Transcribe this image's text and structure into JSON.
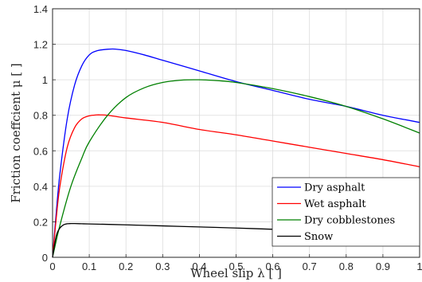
{
  "chart_data": {
    "type": "line",
    "xlabel": "Wheel slip λ [ ]",
    "ylabel": "Friction coeffcient μ [ ]",
    "xlim": [
      0,
      1
    ],
    "ylim": [
      0,
      1.4
    ],
    "xticks": [
      0,
      0.1,
      0.2,
      0.3,
      0.4,
      0.5,
      0.6,
      0.7,
      0.8,
      0.9,
      1
    ],
    "yticks": [
      0,
      0.2,
      0.4,
      0.6,
      0.8,
      1,
      1.2,
      1.4
    ],
    "grid": true,
    "legend_position": "bottom-right",
    "series": [
      {
        "name": "Dry asphalt",
        "color": "#0000ff",
        "x": [
          0,
          0.01,
          0.02,
          0.04,
          0.06,
          0.08,
          0.1,
          0.12,
          0.15,
          0.17,
          0.2,
          0.25,
          0.3,
          0.4,
          0.5,
          0.6,
          0.7,
          0.8,
          0.9,
          1.0
        ],
        "y": [
          0,
          0.25,
          0.47,
          0.78,
          0.97,
          1.08,
          1.14,
          1.163,
          1.172,
          1.173,
          1.165,
          1.14,
          1.11,
          1.05,
          0.99,
          0.94,
          0.89,
          0.85,
          0.8,
          0.76
        ]
      },
      {
        "name": "Wet asphalt",
        "color": "#ff0000",
        "x": [
          0,
          0.01,
          0.02,
          0.04,
          0.06,
          0.08,
          0.1,
          0.12,
          0.13,
          0.15,
          0.2,
          0.3,
          0.4,
          0.5,
          0.6,
          0.7,
          0.8,
          0.9,
          1.0
        ],
        "y": [
          0,
          0.22,
          0.4,
          0.62,
          0.73,
          0.78,
          0.797,
          0.802,
          0.802,
          0.8,
          0.785,
          0.76,
          0.72,
          0.69,
          0.655,
          0.62,
          0.585,
          0.55,
          0.51
        ],
        "unused": false
      },
      {
        "name": "Dry cobblestones",
        "color": "#008000",
        "x": [
          0,
          0.02,
          0.05,
          0.08,
          0.1,
          0.15,
          0.2,
          0.25,
          0.3,
          0.35,
          0.4,
          0.45,
          0.5,
          0.6,
          0.7,
          0.8,
          0.9,
          1.0
        ],
        "y": [
          0,
          0.18,
          0.4,
          0.56,
          0.65,
          0.8,
          0.9,
          0.955,
          0.985,
          0.998,
          1.0,
          0.995,
          0.985,
          0.95,
          0.905,
          0.85,
          0.78,
          0.7
        ]
      },
      {
        "name": "Snow",
        "color": "#000000",
        "x": [
          0,
          0.01,
          0.02,
          0.03,
          0.04,
          0.05,
          0.06,
          0.08,
          0.1,
          0.2,
          0.3,
          0.4,
          0.5,
          0.6,
          0.7,
          0.8,
          0.9,
          1.0
        ],
        "y": [
          0,
          0.12,
          0.165,
          0.183,
          0.189,
          0.19,
          0.19,
          0.189,
          0.188,
          0.183,
          0.177,
          0.171,
          0.165,
          0.158,
          0.151,
          0.145,
          0.138,
          0.131
        ]
      }
    ]
  }
}
